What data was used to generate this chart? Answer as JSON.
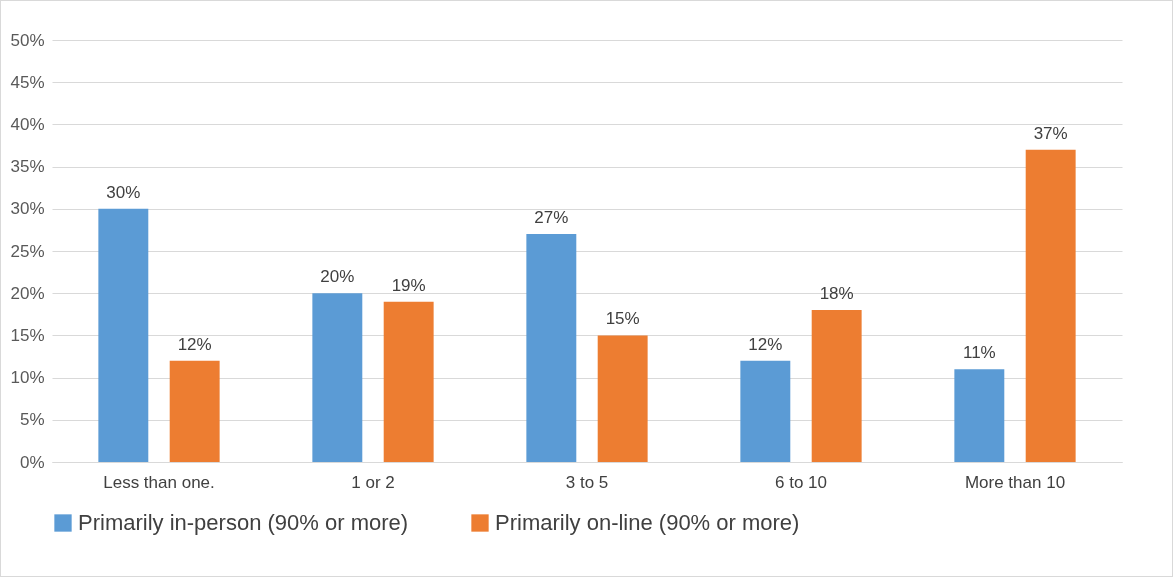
{
  "chart_data": {
    "type": "bar",
    "categories": [
      "Less than one.",
      "1 or 2",
      "3 to 5",
      "6 to 10",
      "More than 10"
    ],
    "series": [
      {
        "name": "Primarily in-person (90% or more)",
        "color": "#5b9bd5",
        "values": [
          30,
          20,
          27,
          12,
          11
        ],
        "value_labels": [
          "30%",
          "20%",
          "27%",
          "12%",
          "11%"
        ]
      },
      {
        "name": "Primarily on-line (90% or more)",
        "color": "#ed7d31",
        "values": [
          12,
          19,
          15,
          18,
          37
        ],
        "value_labels": [
          "12%",
          "19%",
          "15%",
          "18%",
          "37%"
        ]
      }
    ],
    "ylim": [
      0,
      50
    ],
    "yticks": [
      {
        "value": 0,
        "label": "0%"
      },
      {
        "value": 5,
        "label": "5%"
      },
      {
        "value": 10,
        "label": "10%"
      },
      {
        "value": 15,
        "label": "15%"
      },
      {
        "value": 20,
        "label": "20%"
      },
      {
        "value": 25,
        "label": "25%"
      },
      {
        "value": 30,
        "label": "30%"
      },
      {
        "value": 35,
        "label": "35%"
      },
      {
        "value": 40,
        "label": "40%"
      },
      {
        "value": 45,
        "label": "45%"
      },
      {
        "value": 50,
        "label": "50%"
      }
    ],
    "grid": "y",
    "legend": "bottom"
  }
}
